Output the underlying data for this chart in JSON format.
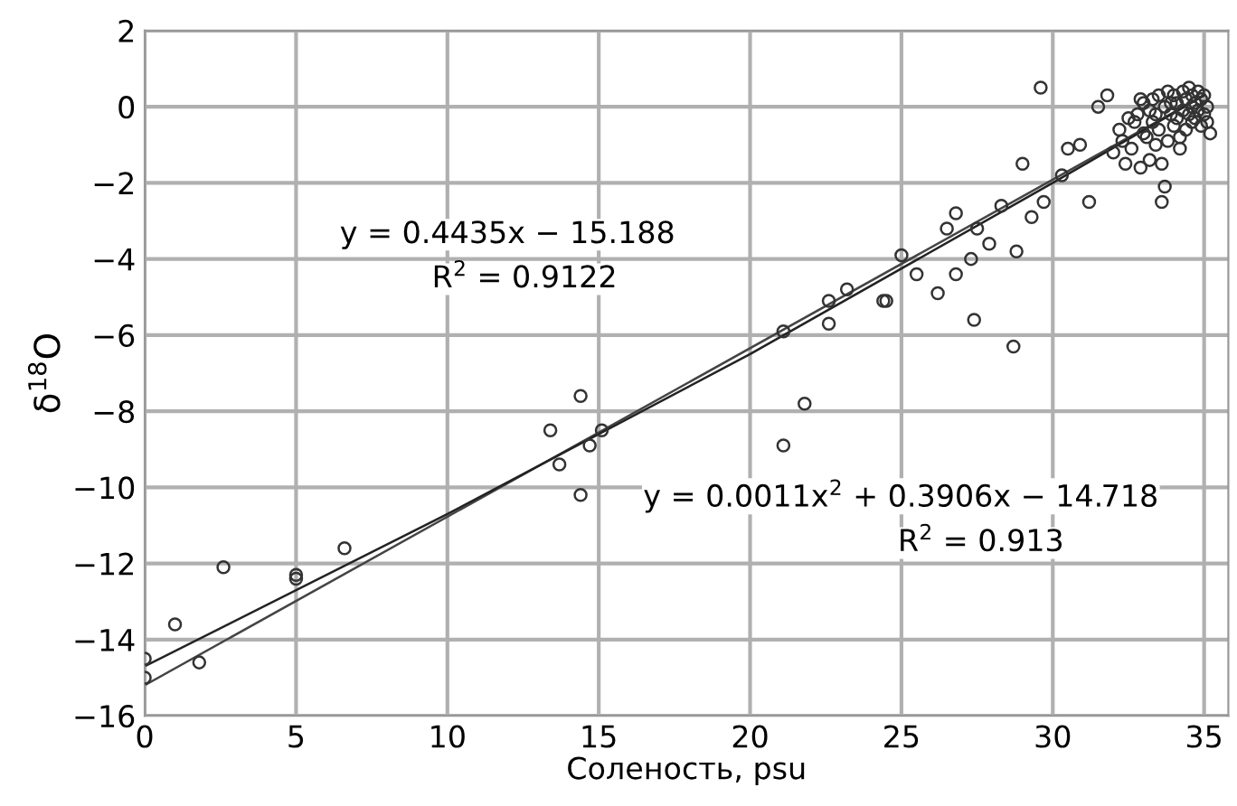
{
  "chart_data": {
    "type": "scatter",
    "xlabel": "Соленость, psu",
    "ylabel": "δ$^{18}$O",
    "xlim": [
      0,
      35.8
    ],
    "ylim": [
      -16,
      2
    ],
    "xticks": [
      0,
      5,
      10,
      15,
      20,
      25,
      30,
      35
    ],
    "yticks": [
      {
        "value": -16,
        "label": "−16"
      },
      {
        "value": -14,
        "label": "−14"
      },
      {
        "value": -12,
        "label": "−12"
      },
      {
        "value": -10,
        "label": "−10"
      },
      {
        "value": -8,
        "label": "−8"
      },
      {
        "value": -6,
        "label": "−6"
      },
      {
        "value": -4,
        "label": "−4"
      },
      {
        "value": -2,
        "label": "−2"
      },
      0,
      2
    ],
    "grid": true,
    "series": [
      {
        "marker": "circle",
        "color": "#333333",
        "x": [
          0,
          0,
          1,
          1.8,
          2.6,
          5,
          5,
          6.6,
          13.4,
          14.4,
          13.7,
          14.4,
          14.7,
          15.1,
          21.1,
          21.8,
          21.1,
          22.6,
          22.6,
          23.2,
          24.4,
          29.6,
          28.7,
          27.4,
          26.2,
          26.8,
          25.5,
          24.5,
          25.0,
          27.3,
          28.8,
          26.5,
          26.8,
          27.5,
          27.9,
          28.3,
          29.3,
          29.7,
          29.0,
          30.3,
          31.2,
          30.5,
          30.9,
          31.5,
          31.8,
          33.7,
          33.6,
          35.2,
          32.0,
          32.2,
          32.4,
          32.5,
          32.6,
          32.8,
          32.9,
          33.0,
          33.1,
          33.2,
          33.3,
          33.3,
          33.4,
          33.5,
          33.5,
          33.6,
          33.7,
          33.8,
          33.8,
          33.9,
          34.0,
          34.0,
          34.1,
          34.1,
          34.2,
          34.3,
          34.3,
          34.4,
          34.4,
          34.5,
          34.5,
          34.6,
          34.6,
          34.7,
          34.7,
          34.8,
          34.8,
          34.9,
          34.9,
          35.0,
          35.0,
          35.1,
          32.3,
          32.7,
          33.0,
          33.4,
          33.9,
          34.2,
          34.6,
          35.1,
          32.9,
          33.2
        ],
        "values": [
          -14.5,
          -15.0,
          -13.6,
          -14.6,
          -12.1,
          -12.4,
          -12.3,
          -11.6,
          -8.5,
          -7.6,
          -9.4,
          -10.2,
          -8.9,
          -8.5,
          -5.9,
          -7.8,
          -8.9,
          -5.7,
          -5.1,
          -4.8,
          -5.1,
          0.5,
          -6.3,
          -5.6,
          -4.9,
          -4.4,
          -4.4,
          -5.1,
          -3.9,
          -4.0,
          -3.8,
          -3.2,
          -2.8,
          -3.2,
          -3.6,
          -2.6,
          -2.9,
          -2.5,
          -1.5,
          -1.8,
          -2.5,
          -1.1,
          -1.0,
          0.0,
          0.3,
          -2.1,
          -2.5,
          -0.7,
          -1.2,
          -0.6,
          -1.5,
          -0.3,
          -1.1,
          -0.2,
          -1.6,
          0.1,
          -0.8,
          -1.4,
          0.2,
          -0.4,
          -1.0,
          0.3,
          -0.6,
          -1.5,
          0.0,
          0.4,
          -0.9,
          -0.2,
          0.3,
          -0.5,
          0.1,
          -0.3,
          -1.1,
          0.4,
          -0.1,
          0.2,
          -0.6,
          0.5,
          -0.2,
          0.3,
          -0.4,
          0.1,
          -0.3,
          0.4,
          -0.1,
          0.2,
          -0.5,
          0.3,
          -0.2,
          0.0,
          -0.9,
          -0.4,
          -0.7,
          -0.2,
          0.1,
          -0.8,
          0.0,
          -0.4,
          0.2,
          -0.1
        ]
      },
      {
        "type": "line",
        "color": "#444444",
        "x": [
          0,
          35
        ],
        "values": [
          -15.2,
          0.3
        ]
      },
      {
        "type": "line",
        "color": "#222222",
        "x": [
          0,
          10,
          20,
          30,
          35
        ],
        "values": [
          -14.7,
          -10.7,
          -6.5,
          -2.0,
          0.3
        ]
      }
    ],
    "annotations": [
      "y = 0.4435x − 15.188",
      "R$^{2}$ = 0.9122",
      "y = 0.0011x$^{2}$ + 0.3906x − 14.718",
      "R$^{2}$ = 0.913"
    ]
  }
}
